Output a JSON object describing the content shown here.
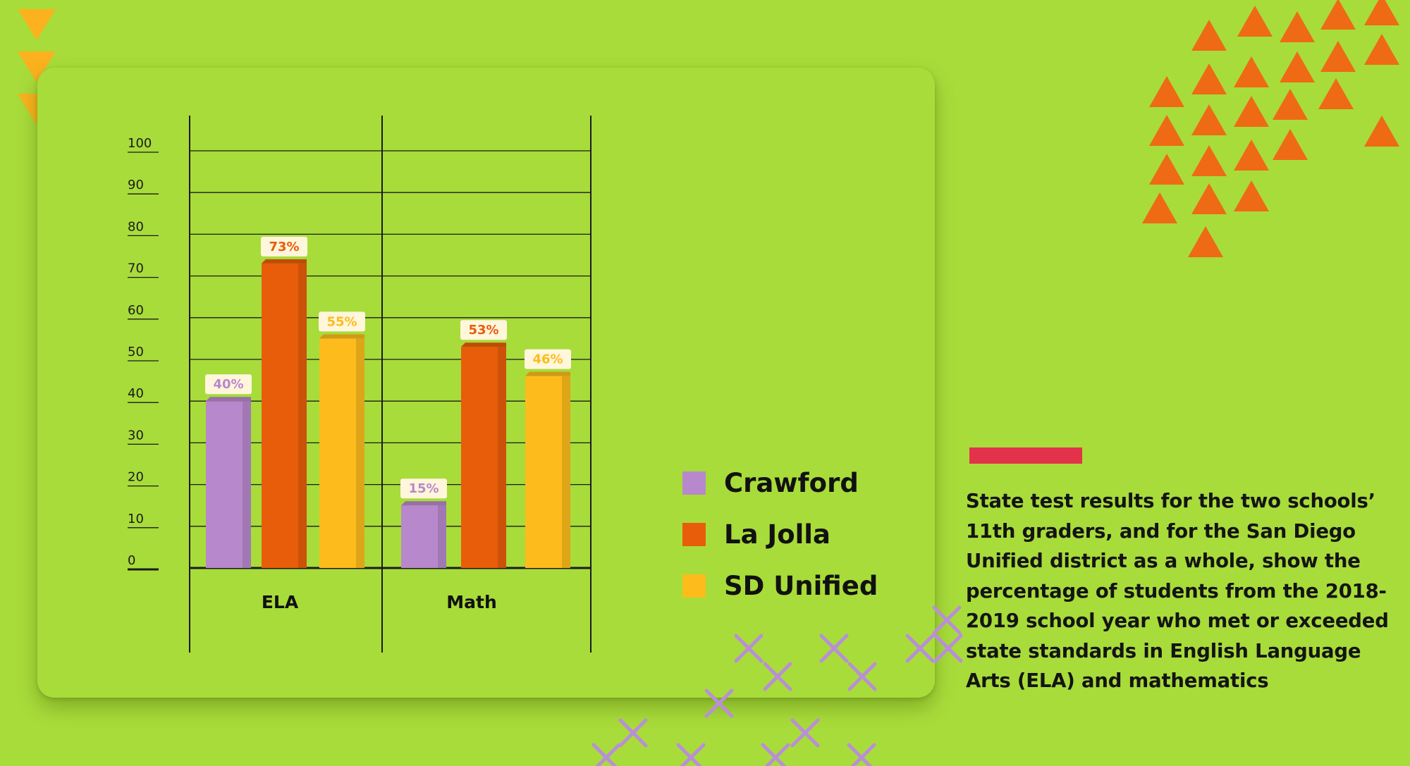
{
  "chart_data": {
    "type": "bar",
    "categories": [
      "ELA",
      "Math"
    ],
    "series": [
      {
        "name": "Crawford",
        "values": [
          40,
          15
        ],
        "labels": [
          "40%",
          "15%"
        ],
        "color": "#b888cc"
      },
      {
        "name": "La Jolla",
        "values": [
          73,
          53
        ],
        "labels": [
          "73%",
          "53%"
        ],
        "color": "#e85d0a"
      },
      {
        "name": "SD Unified",
        "values": [
          55,
          46
        ],
        "labels": [
          "55%",
          "46%"
        ],
        "color": "#fdbc1c"
      }
    ],
    "yticks": [
      "0",
      "10",
      "20",
      "30",
      "40",
      "50",
      "60",
      "70",
      "80",
      "90",
      "100"
    ],
    "ylim": [
      0,
      100
    ],
    "legend_position": "right",
    "grid": true
  },
  "description": "State test results for the two schools’ 11th graders, and for the San Diego Unified district as a whole, show the percentage of students from the 2018-2019 school year who met or exceeded state standards in English Language Arts (ELA) and mathematics",
  "colors": {
    "background": "#a8dc3a",
    "accent_bar": "#e3334a",
    "triangle_orange": "#ef6a14",
    "triangle_yellow": "#fbb21e",
    "cross_purple": "#b98fd6"
  }
}
